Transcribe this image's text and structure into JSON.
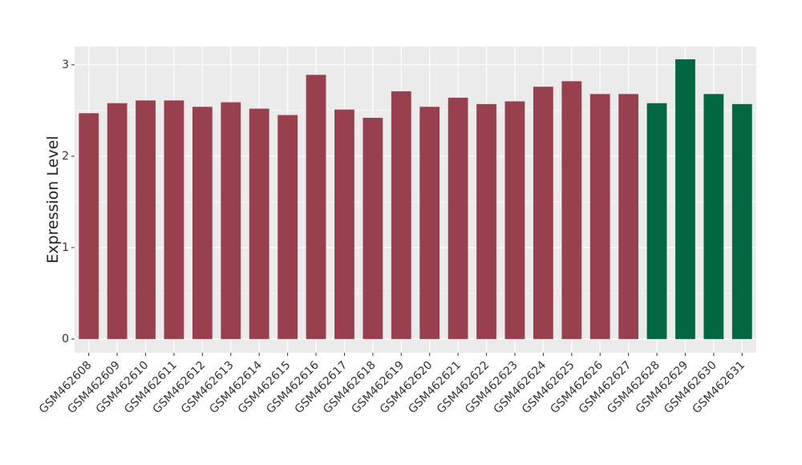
{
  "chart_data": {
    "type": "bar",
    "y_label": "Expression Level",
    "categories": [
      "GSM462608",
      "GSM462609",
      "GSM462610",
      "GSM462611",
      "GSM462612",
      "GSM462613",
      "GSM462614",
      "GSM462615",
      "GSM462616",
      "GSM462617",
      "GSM462618",
      "GSM462619",
      "GSM462620",
      "GSM462621",
      "GSM462622",
      "GSM462623",
      "GSM462624",
      "GSM462625",
      "GSM462626",
      "GSM462627",
      "GSM462628",
      "GSM462629",
      "GSM462630",
      "GSM462631"
    ],
    "values": [
      2.47,
      2.58,
      2.61,
      2.61,
      2.54,
      2.59,
      2.52,
      2.45,
      2.89,
      2.51,
      2.42,
      2.71,
      2.54,
      2.64,
      2.57,
      2.6,
      2.76,
      2.82,
      2.68,
      2.68,
      2.58,
      3.06,
      2.68,
      2.57
    ],
    "colors": [
      "#99404e",
      "#99404e",
      "#99404e",
      "#99404e",
      "#99404e",
      "#99404e",
      "#99404e",
      "#99404e",
      "#99404e",
      "#99404e",
      "#99404e",
      "#99404e",
      "#99404e",
      "#99404e",
      "#99404e",
      "#99404e",
      "#99404e",
      "#99404e",
      "#99404e",
      "#99404e",
      "#006741",
      "#006741",
      "#006741",
      "#006741"
    ],
    "ylim": [
      -0.15,
      3.2
    ],
    "yticks": [
      0,
      1,
      2,
      3
    ],
    "grid": true
  }
}
